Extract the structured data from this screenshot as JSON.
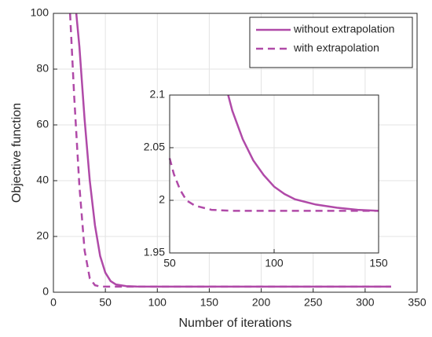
{
  "chart_data": [
    {
      "type": "line",
      "xlabel": "Number of iterations",
      "ylabel": "Objective function",
      "xlim": [
        0,
        350
      ],
      "xticks": [
        0,
        50,
        100,
        150,
        200,
        250,
        300,
        350
      ],
      "ylim": [
        0,
        100
      ],
      "yticks": [
        0,
        20,
        40,
        60,
        80,
        100
      ],
      "grid": true,
      "legend": "upper right",
      "series": [
        {
          "name": "without extrapolation",
          "color": "#b04aa8",
          "dash": false,
          "x": [
            22,
            25,
            30,
            35,
            40,
            45,
            50,
            55,
            60,
            70,
            80,
            100,
            150,
            325
          ],
          "values": [
            100,
            88,
            62,
            40,
            24,
            13,
            7,
            4,
            2.8,
            2.2,
            2.05,
            1.99,
            1.99,
            1.99
          ]
        },
        {
          "name": "with extrapolation",
          "color": "#b04aa8",
          "dash": true,
          "x": [
            16,
            20,
            25,
            30,
            35,
            40,
            45,
            50,
            100,
            325
          ],
          "values": [
            100,
            70,
            38,
            15,
            5,
            2.5,
            2.05,
            2,
            1.99,
            1.99
          ]
        }
      ]
    },
    {
      "type": "line",
      "xlim": [
        50,
        150
      ],
      "xticks": [
        50,
        100,
        150
      ],
      "ylim": [
        1.95,
        2.1
      ],
      "yticks": [
        1.95,
        2,
        2.05,
        2.1
      ],
      "grid": true,
      "series": [
        {
          "color": "#b04aa8",
          "dash": false,
          "x": [
            78,
            80,
            85,
            90,
            95,
            100,
            105,
            110,
            120,
            130,
            140,
            150
          ],
          "values": [
            2.1,
            2.085,
            2.058,
            2.038,
            2.024,
            2.013,
            2.006,
            2.001,
            1.996,
            1.993,
            1.991,
            1.99
          ]
        },
        {
          "color": "#b04aa8",
          "dash": true,
          "x": [
            50,
            52,
            55,
            58,
            62,
            70,
            80,
            150
          ],
          "values": [
            2.04,
            2.025,
            2.01,
            2.0,
            1.995,
            1.991,
            1.99,
            1.99
          ]
        }
      ]
    }
  ]
}
